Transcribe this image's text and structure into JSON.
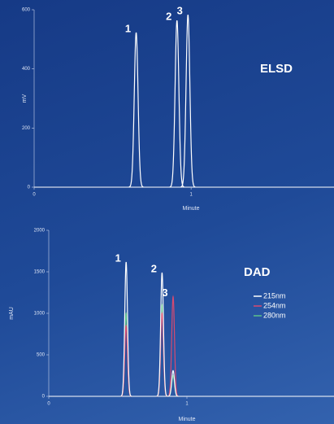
{
  "chart_data": [
    {
      "type": "chromatogram",
      "title": "ELSD",
      "y_label": "mV",
      "x_label": "Minute",
      "xlim": [
        0,
        1.9
      ],
      "ylim": [
        0,
        600
      ],
      "xticks": [
        0,
        1
      ],
      "yticks": [
        0,
        200,
        400,
        600
      ],
      "peak_labels": [
        "1",
        "2",
        "3"
      ],
      "x": [
        0.65,
        0.91,
        0.98
      ],
      "series": [
        {
          "color": "#ffffff",
          "values": [
            523,
            564,
            583
          ]
        }
      ]
    },
    {
      "type": "chromatogram",
      "title": "DAD",
      "y_label": "mAU",
      "x_label": "Minute",
      "xlim": [
        0,
        2
      ],
      "ylim": [
        0,
        2000
      ],
      "xticks": [
        0,
        1
      ],
      "yticks": [
        0,
        500,
        1000,
        1500,
        2000
      ],
      "peak_labels": [
        "1",
        "2",
        "3"
      ],
      "x": [
        0.56,
        0.82,
        0.9
      ],
      "series": [
        {
          "name": "215nm",
          "color": "#ffffff",
          "values": [
            1618,
            1490,
            310
          ]
        },
        {
          "name": "254nm",
          "color": "#d84a70",
          "values": [
            850,
            1000,
            1200
          ]
        },
        {
          "name": "280nm",
          "color": "#5cc08a",
          "values": [
            1000,
            1100,
            250
          ]
        }
      ],
      "legend": true
    }
  ]
}
